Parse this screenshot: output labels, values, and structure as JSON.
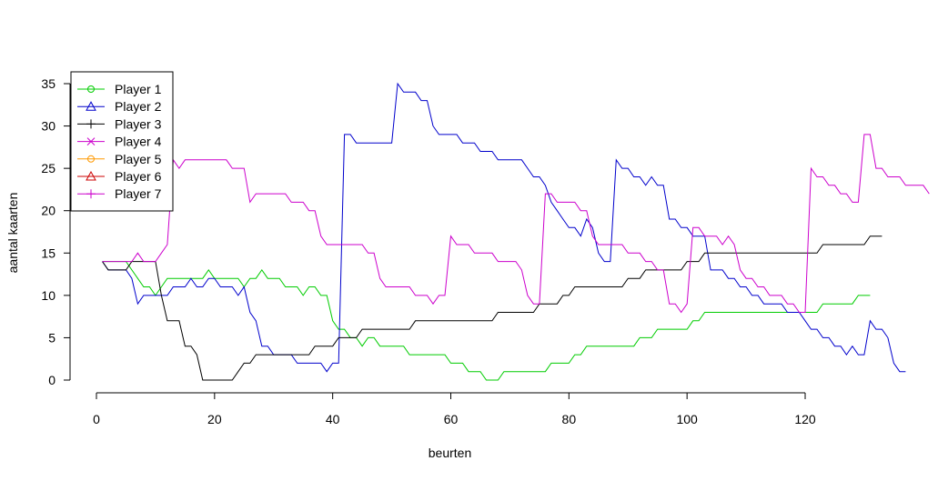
{
  "chart_data": {
    "type": "line",
    "title": "",
    "xlabel": "beurten",
    "ylabel": "aantal kaarten",
    "xlim": [
      1,
      131
    ],
    "ylim": [
      0,
      35
    ],
    "x_ticks": [
      0,
      20,
      40,
      60,
      80,
      100,
      120
    ],
    "y_ticks": [
      0,
      5,
      10,
      15,
      20,
      25,
      30,
      35
    ],
    "grid": false,
    "legend_position": "top-left",
    "series": [
      {
        "name": "Player 1",
        "color": "#00cc00",
        "marker": "circle",
        "points": [
          [
            1,
            14
          ],
          [
            5,
            14
          ],
          [
            6,
            13
          ],
          [
            7,
            12
          ],
          [
            8,
            11
          ],
          [
            9,
            11
          ],
          [
            10,
            10
          ],
          [
            11,
            11
          ],
          [
            12,
            12
          ],
          [
            18,
            12
          ],
          [
            19,
            13
          ],
          [
            20,
            12
          ],
          [
            24,
            12
          ],
          [
            25,
            11
          ],
          [
            26,
            12
          ],
          [
            27,
            12
          ],
          [
            28,
            13
          ],
          [
            29,
            12
          ],
          [
            31,
            12
          ],
          [
            32,
            11
          ],
          [
            34,
            11
          ],
          [
            35,
            10
          ],
          [
            36,
            11
          ],
          [
            37,
            11
          ],
          [
            38,
            10
          ],
          [
            39,
            10
          ],
          [
            40,
            7
          ],
          [
            41,
            6
          ],
          [
            42,
            6
          ],
          [
            43,
            5
          ],
          [
            44,
            5
          ],
          [
            45,
            4
          ],
          [
            46,
            5
          ],
          [
            47,
            5
          ],
          [
            48,
            4
          ],
          [
            52,
            4
          ],
          [
            53,
            3
          ],
          [
            59,
            3
          ],
          [
            60,
            2
          ],
          [
            62,
            2
          ],
          [
            63,
            1
          ],
          [
            65,
            1
          ],
          [
            66,
            0
          ],
          [
            68,
            0
          ],
          [
            69,
            1
          ],
          [
            76,
            1
          ],
          [
            77,
            2
          ],
          [
            80,
            2
          ],
          [
            81,
            3
          ],
          [
            82,
            3
          ],
          [
            83,
            4
          ],
          [
            91,
            4
          ],
          [
            92,
            5
          ],
          [
            94,
            5
          ],
          [
            95,
            6
          ],
          [
            100,
            6
          ],
          [
            101,
            7
          ],
          [
            102,
            7
          ],
          [
            103,
            8
          ],
          [
            120,
            8
          ],
          [
            122,
            8
          ],
          [
            123,
            9
          ],
          [
            128,
            9
          ],
          [
            129,
            10
          ],
          [
            131,
            10
          ]
        ]
      },
      {
        "name": "Player 2",
        "color": "#0000cc",
        "marker": "triangle",
        "points": [
          [
            1,
            14
          ],
          [
            2,
            13
          ],
          [
            5,
            13
          ],
          [
            6,
            12
          ],
          [
            7,
            9
          ],
          [
            8,
            10
          ],
          [
            12,
            10
          ],
          [
            13,
            11
          ],
          [
            15,
            11
          ],
          [
            16,
            12
          ],
          [
            17,
            11
          ],
          [
            18,
            11
          ],
          [
            19,
            12
          ],
          [
            20,
            12
          ],
          [
            21,
            11
          ],
          [
            23,
            11
          ],
          [
            24,
            10
          ],
          [
            25,
            11
          ],
          [
            26,
            8
          ],
          [
            27,
            7
          ],
          [
            28,
            4
          ],
          [
            29,
            4
          ],
          [
            30,
            3
          ],
          [
            33,
            3
          ],
          [
            34,
            2
          ],
          [
            38,
            2
          ],
          [
            39,
            1
          ],
          [
            40,
            2
          ],
          [
            41,
            2
          ],
          [
            42,
            29
          ],
          [
            43,
            29
          ],
          [
            44,
            28
          ],
          [
            50,
            28
          ],
          [
            51,
            35
          ],
          [
            52,
            34
          ],
          [
            54,
            34
          ],
          [
            55,
            33
          ],
          [
            56,
            33
          ],
          [
            57,
            30
          ],
          [
            58,
            29
          ],
          [
            61,
            29
          ],
          [
            62,
            28
          ],
          [
            64,
            28
          ],
          [
            65,
            27
          ],
          [
            67,
            27
          ],
          [
            68,
            26
          ],
          [
            72,
            26
          ],
          [
            73,
            25
          ],
          [
            74,
            24
          ],
          [
            75,
            24
          ],
          [
            76,
            23
          ],
          [
            77,
            21
          ],
          [
            78,
            20
          ],
          [
            79,
            19
          ],
          [
            80,
            18
          ],
          [
            81,
            18
          ],
          [
            82,
            17
          ],
          [
            83,
            19
          ],
          [
            84,
            18
          ],
          [
            85,
            15
          ],
          [
            86,
            14
          ],
          [
            87,
            14
          ],
          [
            88,
            26
          ],
          [
            89,
            25
          ],
          [
            90,
            25
          ],
          [
            91,
            24
          ],
          [
            92,
            24
          ],
          [
            93,
            23
          ],
          [
            94,
            24
          ],
          [
            95,
            23
          ],
          [
            96,
            23
          ],
          [
            97,
            19
          ],
          [
            98,
            19
          ],
          [
            99,
            18
          ],
          [
            100,
            18
          ],
          [
            101,
            17
          ],
          [
            103,
            17
          ],
          [
            104,
            13
          ],
          [
            106,
            13
          ],
          [
            107,
            12
          ],
          [
            108,
            12
          ],
          [
            109,
            11
          ],
          [
            110,
            11
          ],
          [
            111,
            10
          ],
          [
            112,
            10
          ],
          [
            113,
            9
          ],
          [
            116,
            9
          ],
          [
            117,
            8
          ],
          [
            119,
            8
          ],
          [
            120,
            7
          ],
          [
            121,
            6
          ],
          [
            122,
            6
          ],
          [
            123,
            5
          ],
          [
            124,
            5
          ],
          [
            125,
            4
          ],
          [
            126,
            4
          ],
          [
            127,
            3
          ],
          [
            128,
            4
          ],
          [
            129,
            3
          ],
          [
            130,
            3
          ],
          [
            131,
            7
          ],
          [
            132,
            6
          ],
          [
            133,
            6
          ],
          [
            134,
            5
          ],
          [
            135,
            2
          ],
          [
            136,
            1
          ],
          [
            137,
            1
          ]
        ]
      },
      {
        "name": "Player 3",
        "color": "#000000",
        "marker": "plus",
        "points": [
          [
            1,
            14
          ],
          [
            2,
            13
          ],
          [
            5,
            13
          ],
          [
            6,
            14
          ],
          [
            10,
            14
          ],
          [
            11,
            10
          ],
          [
            12,
            7
          ],
          [
            14,
            7
          ],
          [
            15,
            4
          ],
          [
            16,
            4
          ],
          [
            17,
            3
          ],
          [
            18,
            0
          ],
          [
            23,
            0
          ],
          [
            24,
            1
          ],
          [
            25,
            2
          ],
          [
            26,
            2
          ],
          [
            27,
            3
          ],
          [
            36,
            3
          ],
          [
            37,
            4
          ],
          [
            40,
            4
          ],
          [
            41,
            5
          ],
          [
            44,
            5
          ],
          [
            45,
            6
          ],
          [
            53,
            6
          ],
          [
            54,
            7
          ],
          [
            67,
            7
          ],
          [
            68,
            8
          ],
          [
            74,
            8
          ],
          [
            75,
            9
          ],
          [
            78,
            9
          ],
          [
            79,
            10
          ],
          [
            80,
            10
          ],
          [
            81,
            11
          ],
          [
            89,
            11
          ],
          [
            90,
            12
          ],
          [
            92,
            12
          ],
          [
            93,
            13
          ],
          [
            99,
            13
          ],
          [
            100,
            14
          ],
          [
            102,
            14
          ],
          [
            103,
            15
          ],
          [
            122,
            15
          ],
          [
            123,
            16
          ],
          [
            130,
            16
          ],
          [
            131,
            17
          ],
          [
            133,
            17
          ]
        ]
      },
      {
        "name": "Player 4",
        "color": "#cc00cc",
        "marker": "cross",
        "points": [
          [
            1,
            14
          ],
          [
            5,
            14
          ],
          [
            6,
            14
          ],
          [
            7,
            15
          ],
          [
            8,
            14
          ],
          [
            9,
            14
          ],
          [
            10,
            14
          ],
          [
            11,
            15
          ],
          [
            12,
            16
          ],
          [
            13,
            26
          ],
          [
            14,
            25
          ],
          [
            15,
            26
          ],
          [
            22,
            26
          ],
          [
            23,
            25
          ],
          [
            25,
            25
          ],
          [
            26,
            21
          ],
          [
            27,
            22
          ],
          [
            32,
            22
          ],
          [
            33,
            21
          ],
          [
            35,
            21
          ],
          [
            36,
            20
          ],
          [
            37,
            20
          ],
          [
            38,
            17
          ],
          [
            39,
            16
          ],
          [
            45,
            16
          ],
          [
            46,
            15
          ],
          [
            47,
            15
          ],
          [
            48,
            12
          ],
          [
            49,
            11
          ],
          [
            53,
            11
          ],
          [
            54,
            10
          ],
          [
            56,
            10
          ],
          [
            57,
            9
          ],
          [
            58,
            10
          ],
          [
            59,
            10
          ],
          [
            60,
            17
          ],
          [
            61,
            16
          ],
          [
            63,
            16
          ],
          [
            64,
            15
          ],
          [
            67,
            15
          ],
          [
            68,
            14
          ],
          [
            71,
            14
          ],
          [
            72,
            13
          ],
          [
            73,
            10
          ],
          [
            74,
            9
          ],
          [
            75,
            9
          ],
          [
            76,
            22
          ],
          [
            77,
            22
          ],
          [
            78,
            21
          ],
          [
            81,
            21
          ],
          [
            82,
            20
          ],
          [
            83,
            20
          ],
          [
            84,
            17
          ],
          [
            85,
            16
          ],
          [
            89,
            16
          ],
          [
            90,
            15
          ],
          [
            92,
            15
          ],
          [
            93,
            14
          ],
          [
            94,
            14
          ],
          [
            95,
            13
          ],
          [
            96,
            13
          ],
          [
            97,
            9
          ],
          [
            98,
            9
          ],
          [
            99,
            8
          ],
          [
            100,
            9
          ],
          [
            101,
            18
          ],
          [
            102,
            18
          ],
          [
            103,
            17
          ],
          [
            105,
            17
          ],
          [
            106,
            16
          ],
          [
            107,
            17
          ],
          [
            108,
            16
          ],
          [
            109,
            13
          ],
          [
            110,
            12
          ],
          [
            111,
            12
          ],
          [
            112,
            11
          ],
          [
            113,
            11
          ],
          [
            114,
            10
          ],
          [
            116,
            10
          ],
          [
            117,
            9
          ],
          [
            118,
            9
          ],
          [
            119,
            8
          ],
          [
            120,
            8
          ],
          [
            121,
            25
          ],
          [
            122,
            24
          ],
          [
            123,
            24
          ],
          [
            124,
            23
          ],
          [
            125,
            23
          ],
          [
            126,
            22
          ],
          [
            127,
            22
          ],
          [
            128,
            21
          ],
          [
            129,
            21
          ],
          [
            130,
            29
          ],
          [
            131,
            29
          ],
          [
            132,
            25
          ],
          [
            133,
            25
          ],
          [
            134,
            24
          ],
          [
            136,
            24
          ],
          [
            137,
            23
          ],
          [
            140,
            23
          ],
          [
            141,
            22
          ]
        ]
      },
      {
        "name": "Player 5",
        "color": "#ff9900",
        "marker": "circle",
        "points": []
      },
      {
        "name": "Player 6",
        "color": "#cc0000",
        "marker": "triangle",
        "points": []
      },
      {
        "name": "Player 7",
        "color": "#cc00cc",
        "marker": "plus",
        "points": []
      }
    ]
  }
}
